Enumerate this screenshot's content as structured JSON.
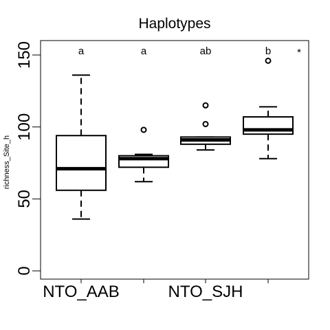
{
  "chart_data": {
    "type": "boxplot",
    "title": "Haplotypes",
    "xlabel": "",
    "ylabel": "richness_Site_h",
    "ylim": [
      0,
      160
    ],
    "yticks": [
      0,
      50,
      100,
      150
    ],
    "categories": [
      "NTO_AAB",
      "",
      "NTO_SJH",
      ""
    ],
    "boxes": [
      {
        "whisker_low": 36,
        "q1": 56,
        "median": 71,
        "q3": 94,
        "whisker_high": 136,
        "outliers": [],
        "letter": "a"
      },
      {
        "whisker_low": 62,
        "q1": 72,
        "median": 78,
        "q3": 80,
        "whisker_high": 81,
        "outliers": [
          98
        ],
        "letter": "a"
      },
      {
        "whisker_low": 84,
        "q1": 88,
        "median": 91,
        "q3": 93,
        "whisker_high": 93,
        "outliers": [
          102,
          115
        ],
        "letter": "ab"
      },
      {
        "whisker_low": 78,
        "q1": 95,
        "median": 98,
        "q3": 107,
        "whisker_high": 114,
        "outliers": [
          146
        ],
        "letter": "b"
      }
    ],
    "significance_marker": "*",
    "grid": false,
    "legend": "none"
  }
}
